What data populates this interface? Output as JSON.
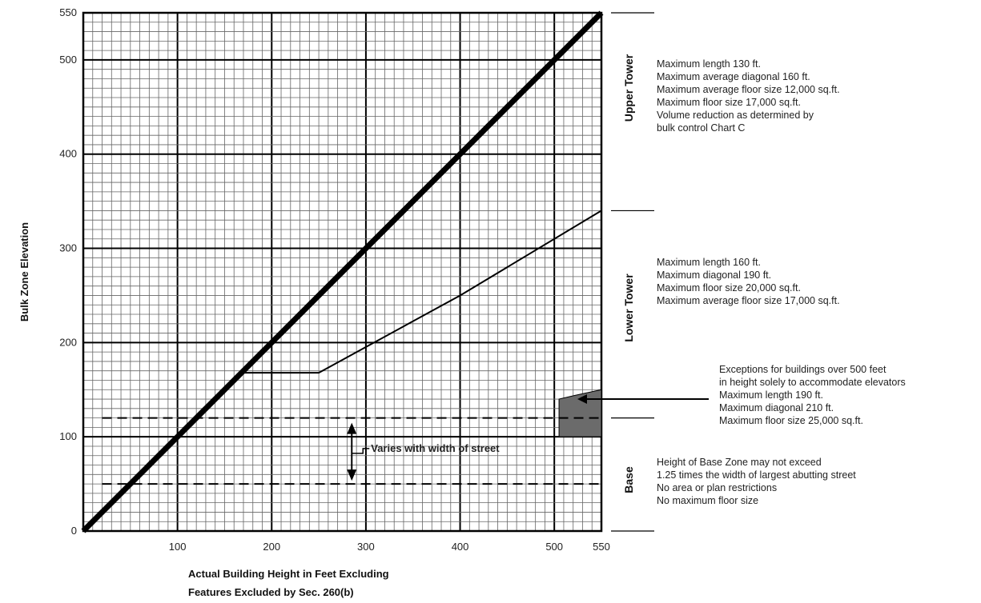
{
  "chart_data": {
    "type": "line",
    "title": "",
    "xlabel_lines": [
      "Actual Building Height in Feet Excluding",
      "Features Excluded by Sec. 260(b)"
    ],
    "ylabel": "Bulk Zone Elevation",
    "xlim": [
      0,
      550
    ],
    "ylim": [
      0,
      550
    ],
    "x_ticks": [
      100,
      200,
      300,
      400,
      500,
      550
    ],
    "y_ticks": [
      0,
      100,
      200,
      300,
      400,
      500,
      550
    ],
    "grid": true,
    "series": [
      {
        "values": [
          [
            0,
            0
          ],
          [
            550,
            550
          ]
        ]
      },
      {
        "values": [
          [
            170,
            168
          ],
          [
            250,
            168
          ],
          [
            400,
            250
          ],
          [
            550,
            340
          ]
        ]
      }
    ],
    "dashed_levels": [
      120,
      50
    ],
    "shaded_region": {
      "x": [
        505,
        550
      ],
      "y": [
        100,
        150
      ]
    },
    "annotation": "Varies with width of street"
  },
  "zones": [
    {
      "label": "Upper Tower",
      "notes": [
        "Maximum length 130 ft.",
        "Maximum average diagonal 160 ft.",
        "Maximum average floor size 12,000 sq.ft.",
        "Maximum floor size 17,000 sq.ft.",
        "Volume reduction as determined by",
        "bulk control Chart C"
      ]
    },
    {
      "label": "Lower Tower",
      "notes": [
        "Maximum length 160 ft.",
        "Maximum diagonal 190 ft.",
        "Maximum floor size 20,000 sq.ft.",
        "Maximum average floor size 17,000 sq.ft."
      ]
    },
    {
      "label": "Base",
      "notes": [
        "Height of Base Zone may not exceed",
        "1.25 times the width of largest abutting street",
        "No area or plan restrictions",
        "No maximum floor size"
      ]
    }
  ],
  "exceptions": {
    "notes": [
      "Exceptions for buildings over 500 feet",
      "in height solely to accommodate elevators",
      "Maximum length 190 ft.",
      "Maximum diagonal 210 ft.",
      "Maximum floor size 25,000 sq.ft."
    ]
  }
}
